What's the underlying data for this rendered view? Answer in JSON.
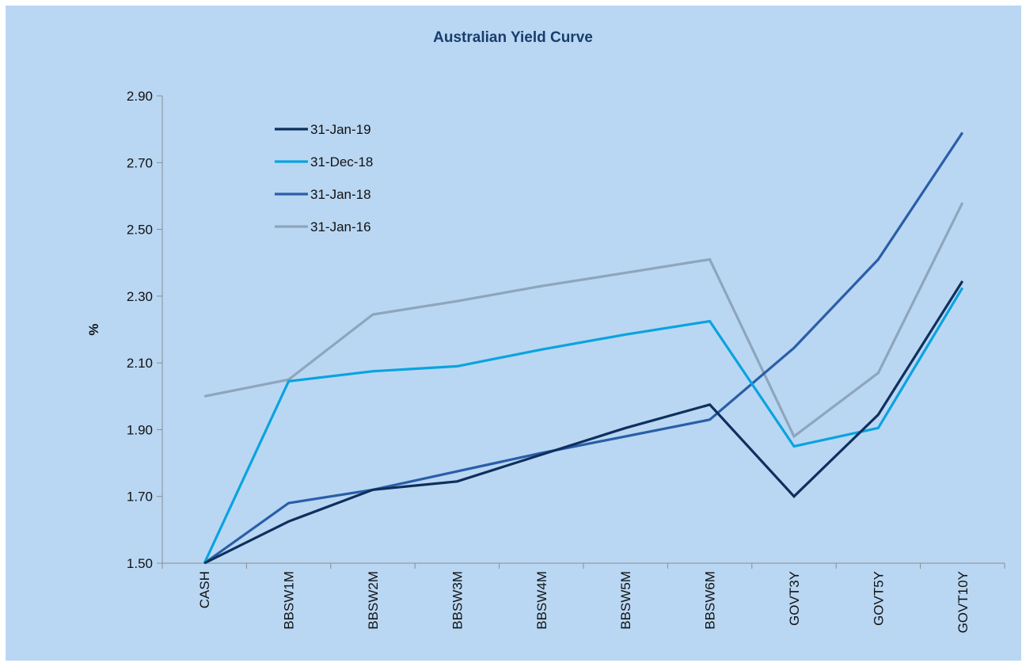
{
  "chart_data": {
    "type": "line",
    "title": "Australian Yield Curve",
    "xlabel": "",
    "ylabel": "%",
    "categories": [
      "CASH",
      "BBSW1M",
      "BBSW2M",
      "BBSW3M",
      "BBSW4M",
      "BBSW5M",
      "BBSW6M",
      "GOVT3Y",
      "GOVT5Y",
      "GOVT10Y"
    ],
    "ylim": [
      1.5,
      2.9
    ],
    "yticks": [
      "1.50",
      "1.70",
      "1.90",
      "2.10",
      "2.30",
      "2.50",
      "2.70",
      "2.90"
    ],
    "grid": false,
    "legend_position": "top-left",
    "series": [
      {
        "name": "31-Jan-19",
        "color": "#0f2f5c",
        "values": [
          1.5,
          1.625,
          1.72,
          1.745,
          1.825,
          1.905,
          1.975,
          1.7,
          1.945,
          2.345
        ]
      },
      {
        "name": "31-Dec-18",
        "color": "#0aa3df",
        "values": [
          1.5,
          2.045,
          2.075,
          2.09,
          2.14,
          2.185,
          2.225,
          1.85,
          1.905,
          2.325
        ]
      },
      {
        "name": "31-Jan-18",
        "color": "#2a5ea8",
        "values": [
          1.5,
          1.68,
          1.72,
          1.775,
          1.83,
          1.88,
          1.93,
          2.145,
          2.41,
          2.79
        ]
      },
      {
        "name": "31-Jan-16",
        "color": "#8ea5bc",
        "values": [
          2.0,
          2.05,
          2.245,
          2.285,
          2.33,
          2.37,
          2.41,
          1.88,
          2.07,
          2.58
        ]
      }
    ]
  }
}
